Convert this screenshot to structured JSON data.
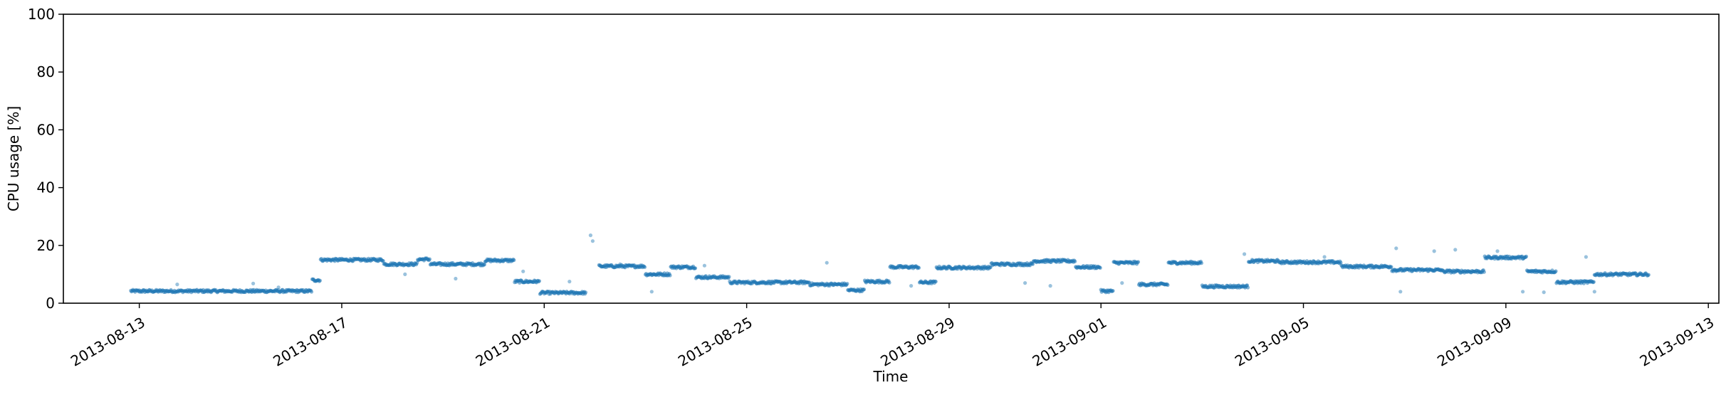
{
  "chart_data": {
    "type": "scatter",
    "title": "",
    "xlabel": "Time",
    "ylabel": "CPU usage [%]",
    "ylim": [
      0,
      100
    ],
    "xlim": [
      "2013-08-11T12:00",
      "2013-09-13T05:00"
    ],
    "yticks": [
      0,
      20,
      40,
      60,
      80,
      100
    ],
    "xticks": [
      "2013-08-13",
      "2013-08-17",
      "2013-08-21",
      "2013-08-25",
      "2013-08-29",
      "2013-09-01",
      "2013-09-05",
      "2013-09-09",
      "2013-09-13"
    ],
    "grid": false,
    "legend": "none",
    "color": "#1f77b4",
    "series": [
      {
        "segments": [
          {
            "start": "2013-08-12T20:00",
            "end": "2013-08-16T10:00",
            "y": 4.2
          },
          {
            "start": "2013-08-16T10:00",
            "end": "2013-08-16T14:00",
            "y": 8.0
          },
          {
            "start": "2013-08-16T14:00",
            "end": "2013-08-17T20:00",
            "y": 15.0
          },
          {
            "start": "2013-08-17T20:00",
            "end": "2013-08-18T12:00",
            "y": 13.5
          },
          {
            "start": "2013-08-18T12:00",
            "end": "2013-08-18T18:00",
            "y": 15.2
          },
          {
            "start": "2013-08-18T18:00",
            "end": "2013-08-19T20:00",
            "y": 13.5
          },
          {
            "start": "2013-08-19T20:00",
            "end": "2013-08-20T10:00",
            "y": 14.8
          },
          {
            "start": "2013-08-20T10:00",
            "end": "2013-08-20T22:00",
            "y": 7.5
          },
          {
            "start": "2013-08-20T22:00",
            "end": "2013-08-21T20:00",
            "y": 3.6
          },
          {
            "start": "2013-08-22T02:00",
            "end": "2013-08-23T00:00",
            "y": 12.8
          },
          {
            "start": "2013-08-23T00:00",
            "end": "2013-08-23T12:00",
            "y": 10.0
          },
          {
            "start": "2013-08-23T12:00",
            "end": "2013-08-24T00:00",
            "y": 12.5
          },
          {
            "start": "2013-08-24T00:00",
            "end": "2013-08-24T16:00",
            "y": 9.0
          },
          {
            "start": "2013-08-24T16:00",
            "end": "2013-08-26T06:00",
            "y": 7.2
          },
          {
            "start": "2013-08-26T06:00",
            "end": "2013-08-27T00:00",
            "y": 6.5
          },
          {
            "start": "2013-08-27T00:00",
            "end": "2013-08-27T08:00",
            "y": 4.5
          },
          {
            "start": "2013-08-27T08:00",
            "end": "2013-08-27T20:00",
            "y": 7.5
          },
          {
            "start": "2013-08-27T20:00",
            "end": "2013-08-28T10:00",
            "y": 12.5
          },
          {
            "start": "2013-08-28T10:00",
            "end": "2013-08-28T18:00",
            "y": 7.2
          },
          {
            "start": "2013-08-28T18:00",
            "end": "2013-08-29T20:00",
            "y": 12.3
          },
          {
            "start": "2013-08-29T20:00",
            "end": "2013-08-30T16:00",
            "y": 13.5
          },
          {
            "start": "2013-08-30T16:00",
            "end": "2013-08-31T12:00",
            "y": 14.6
          },
          {
            "start": "2013-08-31T12:00",
            "end": "2013-09-01T00:00",
            "y": 12.5
          },
          {
            "start": "2013-09-01T00:00",
            "end": "2013-09-01T06:00",
            "y": 4.2
          },
          {
            "start": "2013-09-01T06:00",
            "end": "2013-09-01T18:00",
            "y": 14.0
          },
          {
            "start": "2013-09-01T18:00",
            "end": "2013-09-02T08:00",
            "y": 6.5
          },
          {
            "start": "2013-09-02T08:00",
            "end": "2013-09-03T00:00",
            "y": 14.0
          },
          {
            "start": "2013-09-03T00:00",
            "end": "2013-09-03T22:00",
            "y": 5.8
          },
          {
            "start": "2013-09-03T22:00",
            "end": "2013-09-04T12:00",
            "y": 14.6
          },
          {
            "start": "2013-09-04T12:00",
            "end": "2013-09-05T18:00",
            "y": 14.2
          },
          {
            "start": "2013-09-05T18:00",
            "end": "2013-09-06T18:00",
            "y": 12.7
          },
          {
            "start": "2013-09-06T18:00",
            "end": "2013-09-07T18:00",
            "y": 11.5
          },
          {
            "start": "2013-09-07T18:00",
            "end": "2013-09-08T14:00",
            "y": 11.0
          },
          {
            "start": "2013-09-08T14:00",
            "end": "2013-09-09T10:00",
            "y": 15.8
          },
          {
            "start": "2013-09-09T10:00",
            "end": "2013-09-10T00:00",
            "y": 11.0
          },
          {
            "start": "2013-09-10T00:00",
            "end": "2013-09-10T18:00",
            "y": 7.3
          },
          {
            "start": "2013-09-10T18:00",
            "end": "2013-09-11T20:00",
            "y": 10.0
          }
        ],
        "outliers": [
          {
            "x": "2013-08-13T18:00",
            "y": 6.5
          },
          {
            "x": "2013-08-15T06:00",
            "y": 6.8
          },
          {
            "x": "2013-08-15T18:00",
            "y": 5.5
          },
          {
            "x": "2013-08-18T06:00",
            "y": 10.0
          },
          {
            "x": "2013-08-19T06:00",
            "y": 8.5
          },
          {
            "x": "2013-08-20T14:00",
            "y": 11.0
          },
          {
            "x": "2013-08-21T12:00",
            "y": 7.5
          },
          {
            "x": "2013-08-21T22:00",
            "y": 23.5
          },
          {
            "x": "2013-08-21T23:00",
            "y": 21.5
          },
          {
            "x": "2013-08-22T12:00",
            "y": 13.5
          },
          {
            "x": "2013-08-23T03:00",
            "y": 4.0
          },
          {
            "x": "2013-08-24T04:00",
            "y": 13.0
          },
          {
            "x": "2013-08-26T14:00",
            "y": 14.0
          },
          {
            "x": "2013-08-28T06:00",
            "y": 6.0
          },
          {
            "x": "2013-08-30T12:00",
            "y": 7.0
          },
          {
            "x": "2013-08-31T00:00",
            "y": 6.0
          },
          {
            "x": "2013-09-01T10:00",
            "y": 7.0
          },
          {
            "x": "2013-09-03T20:00",
            "y": 17.0
          },
          {
            "x": "2013-09-05T10:00",
            "y": 16.0
          },
          {
            "x": "2013-09-06T20:00",
            "y": 19.0
          },
          {
            "x": "2013-09-06T22:00",
            "y": 4.0
          },
          {
            "x": "2013-09-07T14:00",
            "y": 18.0
          },
          {
            "x": "2013-09-08T00:00",
            "y": 18.5
          },
          {
            "x": "2013-09-08T20:00",
            "y": 18.0
          },
          {
            "x": "2013-09-09T08:00",
            "y": 4.0
          },
          {
            "x": "2013-09-09T18:00",
            "y": 3.8
          },
          {
            "x": "2013-09-10T14:00",
            "y": 16.0
          },
          {
            "x": "2013-09-10T18:00",
            "y": 4.0
          }
        ]
      }
    ]
  }
}
